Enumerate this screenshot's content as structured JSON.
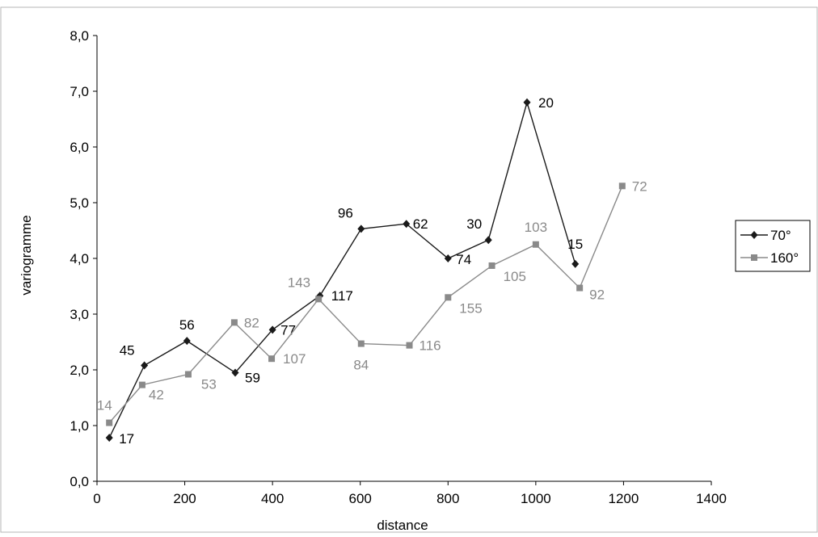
{
  "chart_data": {
    "type": "line",
    "xlabel": "distance",
    "ylabel": "variogramme",
    "xlim": [
      0,
      1400
    ],
    "ylim": [
      0,
      8
    ],
    "x_ticks": [
      "0",
      "200",
      "400",
      "600",
      "800",
      "1000",
      "1200",
      "1400"
    ],
    "y_ticks": [
      "0,0",
      "1,0",
      "2,0",
      "3,0",
      "4,0",
      "5,0",
      "6,0",
      "7,0",
      "8,0"
    ],
    "grid": false,
    "legend_position": "right",
    "series": [
      {
        "name": "70°",
        "color": "#1a1a1a",
        "marker": "diamond",
        "points": [
          {
            "x": 28,
            "y": 0.78,
            "label": "17"
          },
          {
            "x": 108,
            "y": 2.08,
            "label": "45"
          },
          {
            "x": 205,
            "y": 2.52,
            "label": "56"
          },
          {
            "x": 315,
            "y": 1.95,
            "label": "59"
          },
          {
            "x": 400,
            "y": 2.72,
            "label": "77"
          },
          {
            "x": 508,
            "y": 3.33,
            "label": "117"
          },
          {
            "x": 602,
            "y": 4.53,
            "label": "96"
          },
          {
            "x": 705,
            "y": 4.62,
            "label": "62"
          },
          {
            "x": 800,
            "y": 4.0,
            "label": "74"
          },
          {
            "x": 892,
            "y": 4.33,
            "label": "30"
          },
          {
            "x": 980,
            "y": 6.8,
            "label": "20"
          },
          {
            "x": 1090,
            "y": 3.9,
            "label": "15"
          }
        ]
      },
      {
        "name": "160°",
        "color": "#8a8a8a",
        "marker": "square",
        "points": [
          {
            "x": 28,
            "y": 1.05,
            "label": "14"
          },
          {
            "x": 103,
            "y": 1.73,
            "label": "42"
          },
          {
            "x": 208,
            "y": 1.92,
            "label": "53"
          },
          {
            "x": 313,
            "y": 2.85,
            "label": "82"
          },
          {
            "x": 398,
            "y": 2.2,
            "label": "107"
          },
          {
            "x": 505,
            "y": 3.27,
            "label": "143"
          },
          {
            "x": 602,
            "y": 2.47,
            "label": "84"
          },
          {
            "x": 712,
            "y": 2.44,
            "label": "116"
          },
          {
            "x": 800,
            "y": 3.3,
            "label": "155"
          },
          {
            "x": 900,
            "y": 3.87,
            "label": "105"
          },
          {
            "x": 1000,
            "y": 4.25,
            "label": "103"
          },
          {
            "x": 1100,
            "y": 3.47,
            "label": "92"
          },
          {
            "x": 1197,
            "y": 5.3,
            "label": "72"
          }
        ]
      }
    ]
  }
}
